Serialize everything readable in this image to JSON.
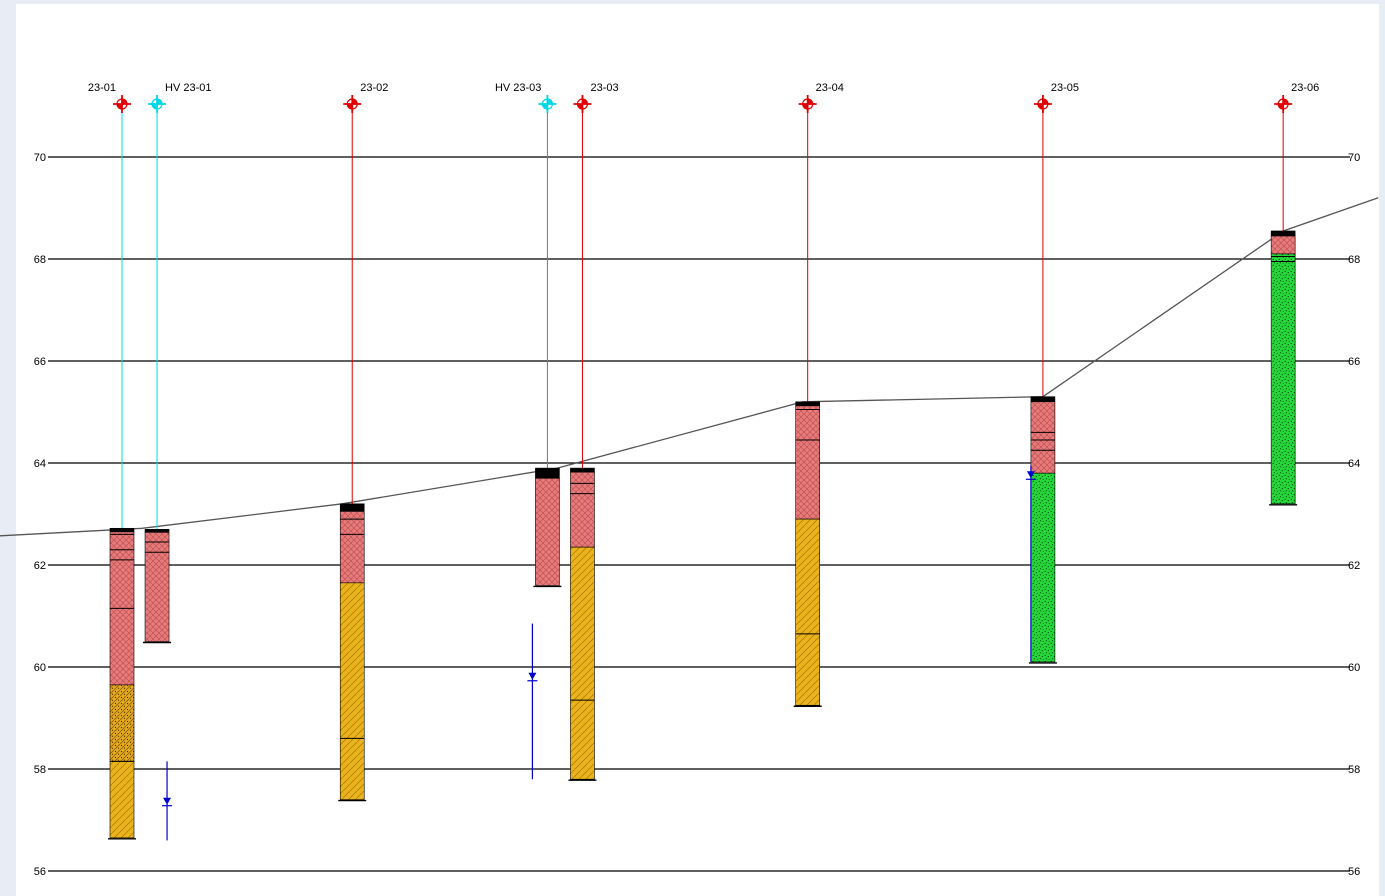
{
  "section": {
    "elevation_ticks": [
      56,
      58,
      60,
      62,
      64,
      66,
      68,
      70
    ],
    "ground_surface": [
      [
        -1.2,
        62.47
      ],
      [
        1.2,
        62.72
      ],
      [
        3.2,
        63.2
      ],
      [
        5.35,
        63.9
      ],
      [
        7.8,
        65.2
      ],
      [
        10.2,
        65.3
      ],
      [
        12.6,
        68.55
      ],
      [
        13.55,
        69.2
      ]
    ],
    "colors": {
      "frame": "#ffffff",
      "grid": "#000000",
      "borehole_symbol": "#e00000",
      "piezometer_symbol": "#00d8e8",
      "ground_line": "#555555",
      "water_level": "#0000cc",
      "topsoil": "#000000",
      "clay": "#e77a7a",
      "sand": "#eab31c",
      "silty_sand": "#e5a91a",
      "gravel": "#25d83a"
    },
    "boreholes": [
      {
        "id": "BH-23-01",
        "label": "23-01",
        "x": 1.0,
        "symbol": "borehole",
        "label_side": "left",
        "riser_color": "#00d8e8",
        "top": 62.72,
        "bottom": 56.65,
        "layers": [
          {
            "from": 62.72,
            "to": 62.65,
            "material": "topsoil"
          },
          {
            "from": 62.65,
            "to": 59.65,
            "material": "clay"
          },
          {
            "from": 59.65,
            "to": 58.15,
            "material": "silty_sand"
          },
          {
            "from": 58.15,
            "to": 56.65,
            "material": "sand"
          }
        ],
        "contacts": [
          62.6,
          62.3,
          62.1,
          61.15,
          58.15
        ]
      },
      {
        "id": "HV-23-01",
        "label": "HV 23-01",
        "x": 1.35,
        "symbol": "piezometer",
        "label_side": "right",
        "riser_color": "#00d8e8",
        "top": 62.7,
        "bottom": 60.5,
        "layers": [
          {
            "from": 62.7,
            "to": 62.64,
            "material": "topsoil"
          },
          {
            "from": 62.64,
            "to": 60.5,
            "material": "clay"
          }
        ],
        "contacts": [
          62.45,
          62.25
        ]
      },
      {
        "id": "BH-23-02",
        "label": "23-02",
        "x": 3.3,
        "symbol": "borehole",
        "label_side": "right",
        "riser_color": "#e00000",
        "top": 63.2,
        "bottom": 57.4,
        "layers": [
          {
            "from": 63.2,
            "to": 63.05,
            "material": "topsoil"
          },
          {
            "from": 63.05,
            "to": 61.65,
            "material": "clay"
          },
          {
            "from": 61.65,
            "to": 57.4,
            "material": "sand"
          }
        ],
        "contacts": [
          62.9,
          62.6,
          58.6
        ]
      },
      {
        "id": "HV-23-03",
        "label": "HV 23-03",
        "x": 5.25,
        "symbol": "piezometer",
        "label_side": "left",
        "riser_color": "#777777",
        "top": 63.9,
        "bottom": 61.6,
        "layers": [
          {
            "from": 63.9,
            "to": 63.7,
            "material": "topsoil"
          },
          {
            "from": 63.7,
            "to": 61.6,
            "material": "clay"
          }
        ],
        "contacts": []
      },
      {
        "id": "BH-23-03",
        "label": "23-03",
        "x": 5.6,
        "symbol": "borehole",
        "label_side": "right",
        "riser_color": "#e00000",
        "top": 63.9,
        "bottom": 57.8,
        "layers": [
          {
            "from": 63.9,
            "to": 63.82,
            "material": "topsoil"
          },
          {
            "from": 63.82,
            "to": 62.35,
            "material": "clay"
          },
          {
            "from": 62.35,
            "to": 57.8,
            "material": "sand"
          }
        ],
        "contacts": [
          63.6,
          63.4,
          59.35
        ]
      },
      {
        "id": "BH-23-04",
        "label": "23-04",
        "x": 7.85,
        "symbol": "borehole",
        "label_side": "right",
        "riser_color": "#e00000",
        "top": 65.2,
        "bottom": 59.25,
        "layers": [
          {
            "from": 65.2,
            "to": 65.12,
            "material": "topsoil"
          },
          {
            "from": 65.12,
            "to": 62.9,
            "material": "clay"
          },
          {
            "from": 62.9,
            "to": 59.25,
            "material": "sand"
          }
        ],
        "contacts": [
          65.05,
          64.45,
          60.65
        ]
      },
      {
        "id": "BH-23-05",
        "label": "23-05",
        "x": 10.2,
        "symbol": "borehole",
        "label_side": "right",
        "riser_color": "#e00000",
        "top": 65.3,
        "bottom": 60.1,
        "layers": [
          {
            "from": 65.3,
            "to": 65.2,
            "material": "topsoil"
          },
          {
            "from": 65.2,
            "to": 63.8,
            "material": "clay"
          },
          {
            "from": 63.8,
            "to": 60.1,
            "material": "gravel"
          }
        ],
        "contacts": [
          64.6,
          64.45,
          64.25
        ]
      },
      {
        "id": "BH-23-06",
        "label": "23-06",
        "x": 12.6,
        "symbol": "borehole",
        "label_side": "right",
        "riser_color": "#e00000",
        "top": 68.55,
        "bottom": 63.2,
        "layers": [
          {
            "from": 68.55,
            "to": 68.45,
            "material": "topsoil"
          },
          {
            "from": 68.45,
            "to": 68.1,
            "material": "clay"
          },
          {
            "from": 68.1,
            "to": 63.2,
            "material": "gravel"
          }
        ],
        "contacts": [
          68.05,
          67.95
        ]
      }
    ],
    "water_levels": [
      {
        "at": 1.45,
        "top": 58.15,
        "level": 57.3,
        "bottom": 56.6
      },
      {
        "at": 5.1,
        "top": 60.85,
        "level": 59.75,
        "bottom": 57.8
      },
      {
        "at": 10.08,
        "top": 63.95,
        "level": 63.7,
        "bottom": 60.1
      }
    ]
  }
}
